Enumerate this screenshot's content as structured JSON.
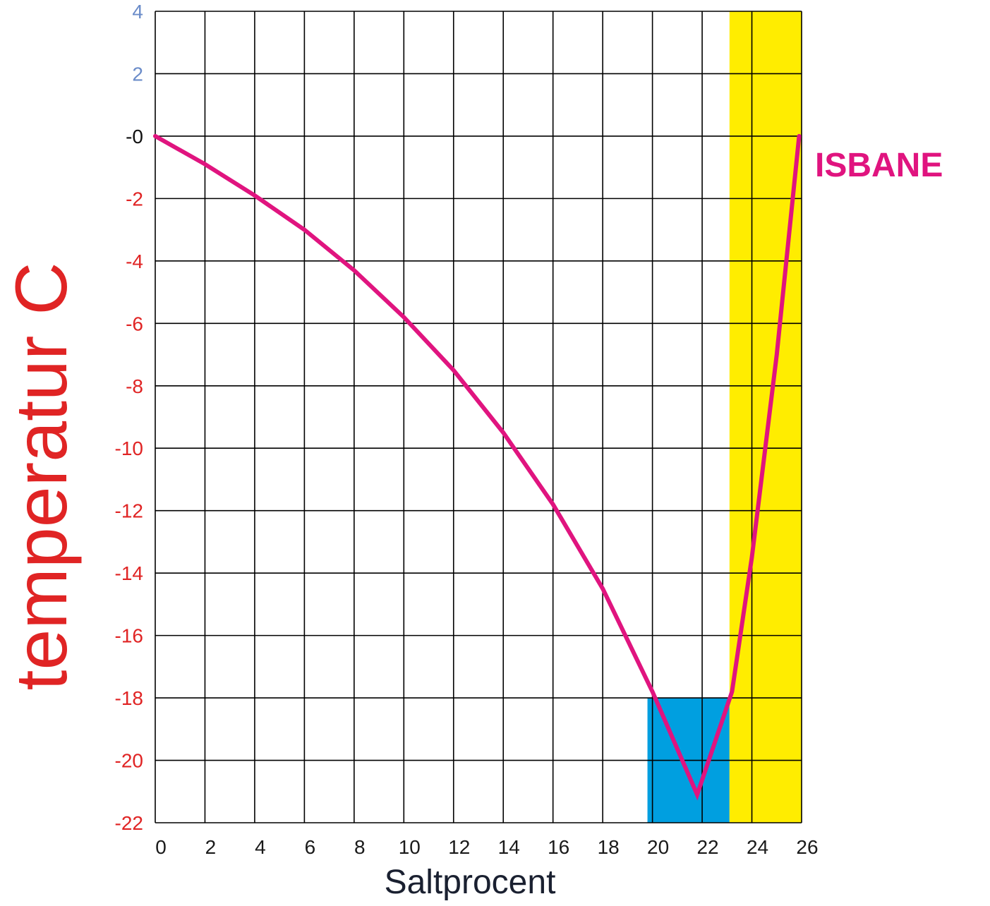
{
  "chart_data": {
    "type": "line",
    "xlabel": "Saltprocent",
    "ylabel": "temperatur  C",
    "xlim": [
      0,
      26
    ],
    "ylim": [
      -22,
      4
    ],
    "x_ticks": [
      "0",
      "2",
      "4",
      "6",
      "8",
      "10",
      "12",
      "14",
      "16",
      "18",
      "20",
      "22",
      "24",
      "26"
    ],
    "y_ticks": [
      {
        "value": 4,
        "label": "4",
        "color": "#6b8cc9"
      },
      {
        "value": 2,
        "label": "2",
        "color": "#6b8cc9"
      },
      {
        "value": 0,
        "label": "-0",
        "color": "#111111"
      },
      {
        "value": -2,
        "label": "-2",
        "color": "#e02424"
      },
      {
        "value": -4,
        "label": "-4",
        "color": "#e02424"
      },
      {
        "value": -6,
        "label": "-6",
        "color": "#e02424"
      },
      {
        "value": -8,
        "label": "-8",
        "color": "#e02424"
      },
      {
        "value": -10,
        "label": "-10",
        "color": "#e02424"
      },
      {
        "value": -12,
        "label": "-12",
        "color": "#e02424"
      },
      {
        "value": -14,
        "label": "-14",
        "color": "#e02424"
      },
      {
        "value": -16,
        "label": "-16",
        "color": "#e02424"
      },
      {
        "value": -18,
        "label": "-18",
        "color": "#e02424"
      },
      {
        "value": -20,
        "label": "-20",
        "color": "#e02424"
      },
      {
        "value": -22,
        "label": "-22",
        "color": "#e02424"
      }
    ],
    "grid": true,
    "regions": [
      {
        "name": "eutectic-box",
        "x": [
          19.8,
          23.1
        ],
        "y": [
          -22,
          -18
        ],
        "color": "#009fe0"
      },
      {
        "name": "isbane-band",
        "x": [
          23.1,
          26
        ],
        "y": [
          -22,
          4
        ],
        "color": "#ffed00"
      }
    ],
    "series": [
      {
        "name": "ISBANE",
        "color": "#e0147f",
        "points": [
          [
            0,
            0
          ],
          [
            2,
            -0.9
          ],
          [
            4,
            -1.9
          ],
          [
            6,
            -3.0
          ],
          [
            8,
            -4.3
          ],
          [
            10,
            -5.8
          ],
          [
            12,
            -7.5
          ],
          [
            14,
            -9.5
          ],
          [
            16,
            -11.8
          ],
          [
            18,
            -14.5
          ],
          [
            20,
            -17.8
          ],
          [
            21.8,
            -21.1
          ],
          [
            23.2,
            -17.8
          ],
          [
            24,
            -13.5
          ],
          [
            25,
            -7.0
          ],
          [
            25.9,
            0
          ]
        ]
      }
    ],
    "axis_label_color": "#e02424"
  }
}
